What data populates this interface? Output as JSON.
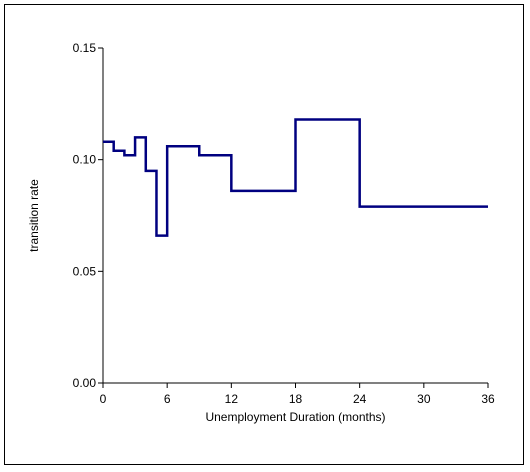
{
  "chart_data": {
    "type": "line",
    "subtype": "step",
    "title": "",
    "xlabel": "Unemployment Duration (months)",
    "ylabel": "transition rate",
    "xlim": [
      0,
      36
    ],
    "ylim": [
      0,
      0.15
    ],
    "x_ticks": [
      "0",
      "6",
      "12",
      "18",
      "24",
      "30",
      "36"
    ],
    "y_ticks": [
      "0.00",
      "0.05",
      "0.10",
      "0.15"
    ],
    "grid": false,
    "legend": "none",
    "line_color": "#000080",
    "series": [
      {
        "x": [
          0,
          1,
          2,
          3,
          4,
          5,
          6,
          9,
          12,
          18,
          24,
          36
        ],
        "y": [
          0.108,
          0.104,
          0.102,
          0.11,
          0.095,
          0.066,
          0.106,
          0.102,
          0.086,
          0.118,
          0.079,
          0.079
        ]
      }
    ]
  }
}
